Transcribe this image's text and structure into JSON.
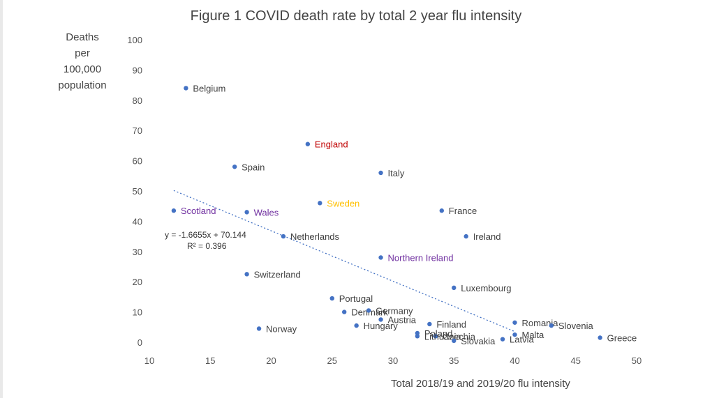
{
  "chart_data": {
    "type": "scatter",
    "title": "Figure 1 COVID death rate by total 2 year flu intensity",
    "ylabel_lines": [
      "Deaths",
      "per",
      "100,000",
      "population"
    ],
    "xlabel": "Total 2018/19 and 2019/20 flu intensity",
    "xlim": [
      10,
      50
    ],
    "ylim": [
      0,
      100
    ],
    "x_ticks": [
      10,
      15,
      20,
      25,
      30,
      35,
      40,
      45,
      50
    ],
    "y_ticks": [
      0,
      10,
      20,
      30,
      40,
      50,
      60,
      70,
      80,
      90,
      100
    ],
    "grid": false,
    "trendline": {
      "slope": -1.6655,
      "intercept": 70.144,
      "x_range": [
        12,
        40
      ],
      "equation": "y = -1.6655x + 70.144",
      "r_squared": "R² = 0.396"
    },
    "colors": {
      "point": "#4472c4",
      "default_label": "#404040",
      "england": "#c00000",
      "sweden": "#ffc000",
      "uk_nations": "#7030a0",
      "trendline": "#4472c4"
    },
    "points": [
      {
        "label": "Belgium",
        "x": 13,
        "y": 84,
        "color": "default_label"
      },
      {
        "label": "England",
        "x": 23,
        "y": 65.5,
        "color": "england"
      },
      {
        "label": "Spain",
        "x": 17,
        "y": 58,
        "color": "default_label"
      },
      {
        "label": "Italy",
        "x": 29,
        "y": 56,
        "color": "default_label"
      },
      {
        "label": "Sweden",
        "x": 24,
        "y": 46,
        "color": "sweden"
      },
      {
        "label": "France",
        "x": 34,
        "y": 43.5,
        "color": "default_label"
      },
      {
        "label": "Scotland",
        "x": 12,
        "y": 43.5,
        "color": "uk_nations"
      },
      {
        "label": "Wales",
        "x": 18,
        "y": 43,
        "color": "uk_nations"
      },
      {
        "label": "Netherlands",
        "x": 21,
        "y": 35,
        "color": "default_label"
      },
      {
        "label": "Ireland",
        "x": 36,
        "y": 35,
        "color": "default_label"
      },
      {
        "label": "Northern Ireland",
        "x": 29,
        "y": 28,
        "color": "uk_nations"
      },
      {
        "label": "Switzerland",
        "x": 18,
        "y": 22.5,
        "color": "default_label"
      },
      {
        "label": "Luxembourg",
        "x": 35,
        "y": 18,
        "color": "default_label"
      },
      {
        "label": "Portugal",
        "x": 25,
        "y": 14.5,
        "color": "default_label"
      },
      {
        "label": "Denmark",
        "x": 26,
        "y": 10,
        "color": "default_label"
      },
      {
        "label": "Germany",
        "x": 28,
        "y": 10.5,
        "color": "default_label"
      },
      {
        "label": "Austria",
        "x": 29,
        "y": 7.5,
        "color": "default_label"
      },
      {
        "label": "Hungary",
        "x": 27,
        "y": 5.5,
        "color": "default_label"
      },
      {
        "label": "Norway",
        "x": 19,
        "y": 4.5,
        "color": "default_label"
      },
      {
        "label": "Finland",
        "x": 33,
        "y": 6,
        "color": "default_label"
      },
      {
        "label": "Romania",
        "x": 40,
        "y": 6.5,
        "color": "default_label"
      },
      {
        "label": "Slovenia",
        "x": 43,
        "y": 5.5,
        "color": "default_label"
      },
      {
        "label": "Malta",
        "x": 40,
        "y": 2.5,
        "color": "default_label"
      },
      {
        "label": "Greece",
        "x": 47,
        "y": 1.5,
        "color": "default_label"
      },
      {
        "label": "Latvia",
        "x": 39,
        "y": 1,
        "color": "default_label"
      },
      {
        "label": "Poland",
        "x": 32,
        "y": 3,
        "color": "default_label"
      },
      {
        "label": "Czechia",
        "x": 33.5,
        "y": 2,
        "color": "default_label"
      },
      {
        "label": "Lithuania",
        "x": 32,
        "y": 2,
        "color": "default_label"
      },
      {
        "label": "Slovakia",
        "x": 35,
        "y": 0.5,
        "color": "default_label"
      }
    ]
  }
}
